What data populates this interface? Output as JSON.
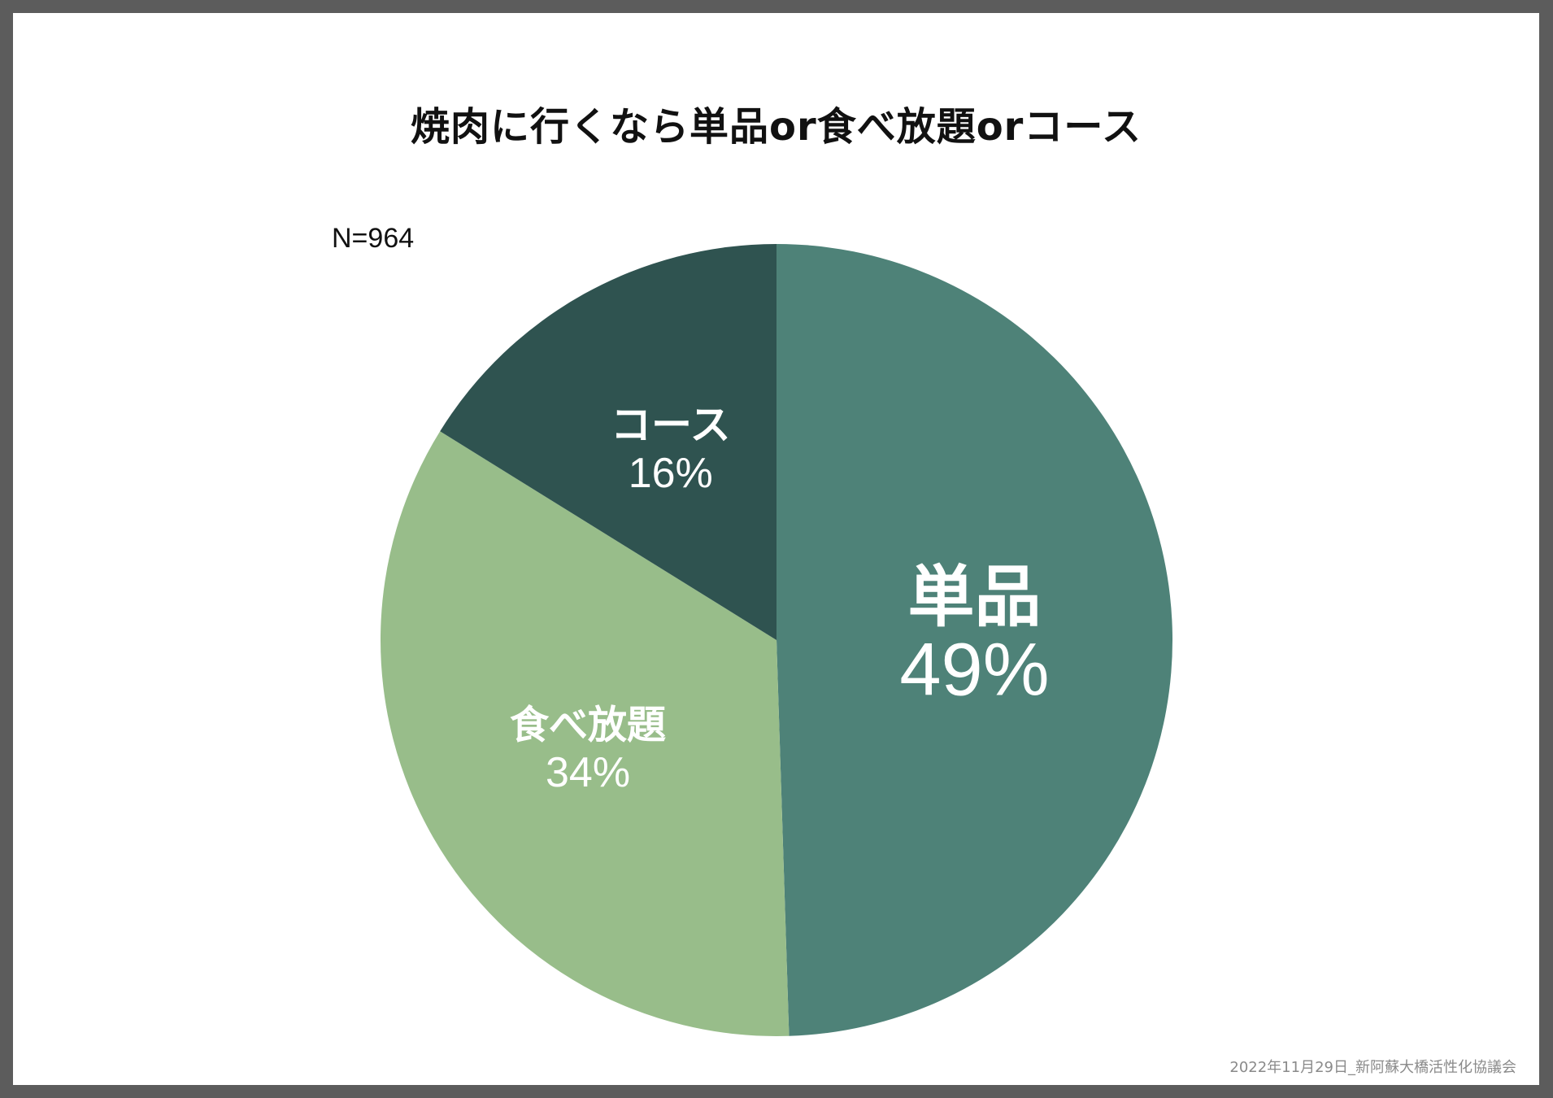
{
  "chart_data": {
    "type": "pie",
    "title": "焼肉に行くなら単品or食べ放題orコース",
    "sample_size_label": "N=964",
    "slices": [
      {
        "label": "単品",
        "value": 49,
        "value_label": "49%",
        "color": "#4e8278"
      },
      {
        "label": "食べ放題",
        "value": 34,
        "value_label": "34%",
        "color": "#98bd8a"
      },
      {
        "label": "コース",
        "value": 16,
        "value_label": "16%",
        "color": "#2f5350"
      }
    ],
    "start_angle": "12 o'clock",
    "direction": "clockwise"
  },
  "footer": {
    "credit": "2022年11月29日_新阿蘇大橋活性化協議会"
  }
}
